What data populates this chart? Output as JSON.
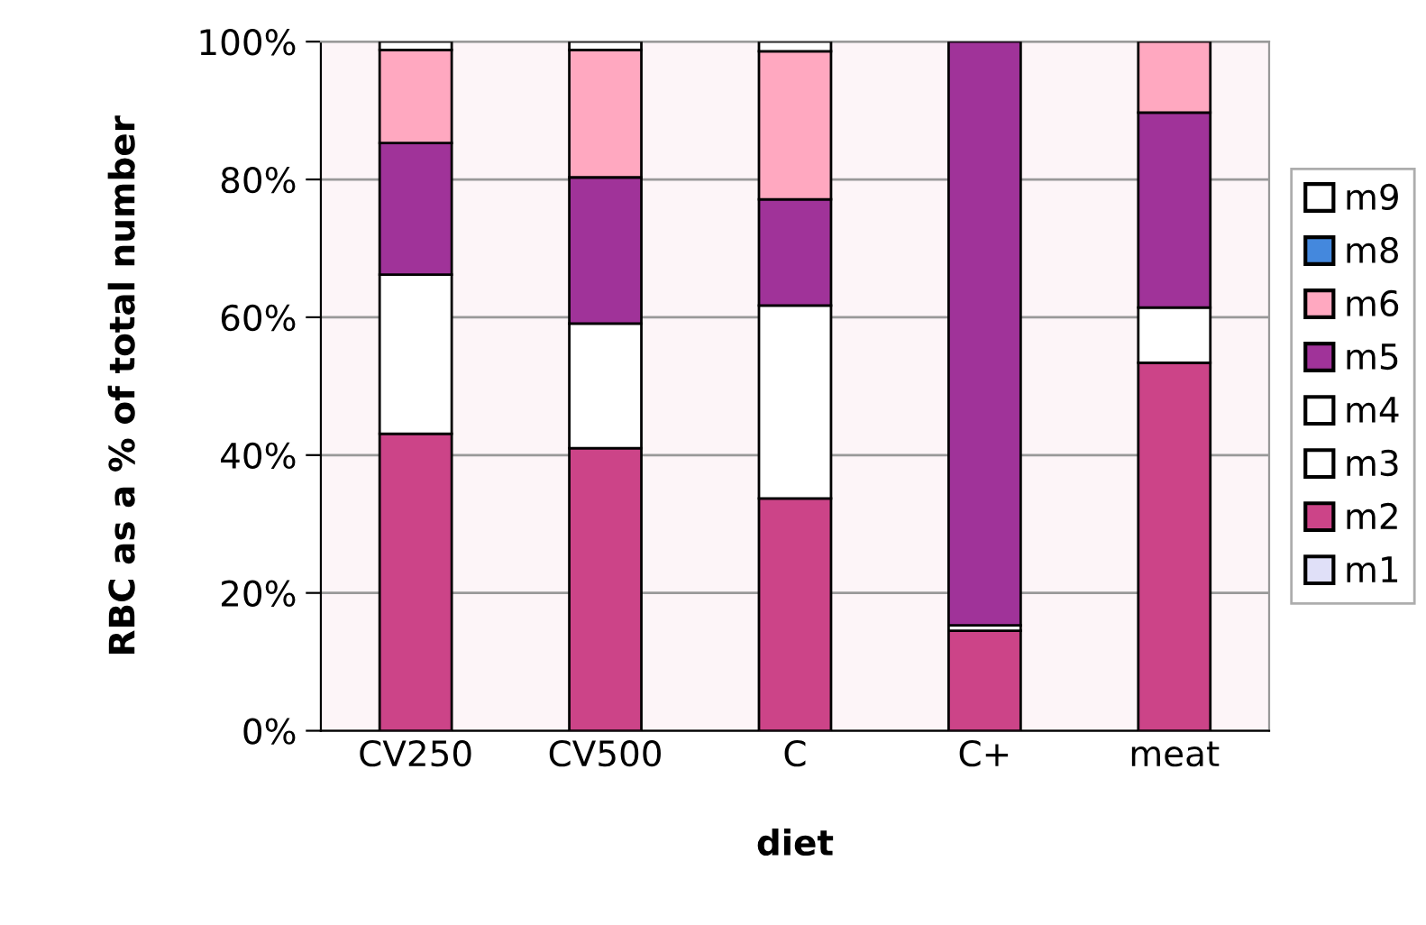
{
  "chart_data": {
    "type": "bar",
    "stacked": true,
    "xlabel": "diet",
    "ylabel": "RBC as a % of total number",
    "categories": [
      "CV250",
      "CV500",
      "C",
      "C+",
      "meat"
    ],
    "series": [
      {
        "name": "m1",
        "color": "#e0e0f8",
        "values": [
          0,
          0,
          0,
          0,
          0
        ]
      },
      {
        "name": "m2",
        "color": "#cc4488",
        "values": [
          43.1,
          41.0,
          33.7,
          14.5,
          53.4
        ]
      },
      {
        "name": "m3",
        "color": "#ffffff",
        "values": [
          0,
          0,
          0,
          0,
          0
        ]
      },
      {
        "name": "m4",
        "color": "#ffffff",
        "values": [
          23.1,
          18.1,
          28.0,
          0.8,
          8.0
        ]
      },
      {
        "name": "m5",
        "color": "#a03399",
        "values": [
          19.1,
          21.2,
          15.4,
          84.7,
          28.3
        ]
      },
      {
        "name": "m6",
        "color": "#ffa8c0",
        "values": [
          13.5,
          18.5,
          21.5,
          0,
          10.3
        ]
      },
      {
        "name": "m8",
        "color": "#4488dd",
        "values": [
          0,
          0,
          0,
          0,
          0
        ]
      },
      {
        "name": "m9",
        "color": "#ffffff",
        "values": [
          1.2,
          1.2,
          1.4,
          0,
          0
        ]
      }
    ],
    "ylim": [
      0,
      100
    ],
    "yticks": [
      {
        "value": 0,
        "label": "0%"
      },
      {
        "value": 20,
        "label": "20%"
      },
      {
        "value": 40,
        "label": "40%"
      },
      {
        "value": 60,
        "label": "60%"
      },
      {
        "value": 80,
        "label": "80%"
      },
      {
        "value": 100,
        "label": "100%"
      }
    ],
    "grid": "y",
    "legend": "right"
  }
}
